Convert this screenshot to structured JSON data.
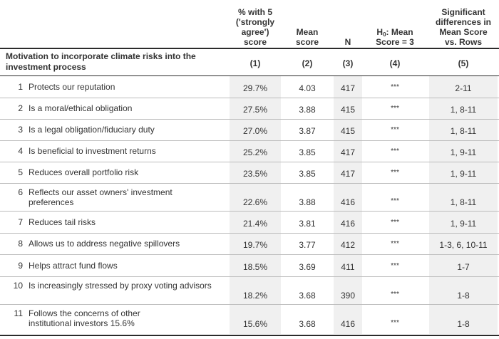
{
  "header": {
    "col1": [
      "% with 5",
      "('strongly",
      "agree')",
      "score"
    ],
    "col2": [
      "Mean",
      "score"
    ],
    "col3": [
      "N"
    ],
    "col4_line1_pre": "H",
    "col4_line1_sub": "0",
    "col4_line1_post": ": Mean",
    "col4_line2": "Score = 3",
    "col5": [
      "Significant",
      "differences in",
      "Mean Score",
      "vs. Rows"
    ]
  },
  "subheader": {
    "title": "Motivation to incorporate climate risks into the investment process",
    "numbers": [
      "(1)",
      "(2)",
      "(3)",
      "(4)",
      "(5)"
    ]
  },
  "rows": [
    {
      "num": "1",
      "label": "Protects our reputation",
      "pct": "29.7%",
      "mean": "4.03",
      "n": "417",
      "h0": "***",
      "sig": "2-11"
    },
    {
      "num": "2",
      "label": "Is a moral/ethical obligation",
      "pct": "27.5%",
      "mean": "3.88",
      "n": "415",
      "h0": "***",
      "sig": "1, 8-11"
    },
    {
      "num": "3",
      "label": "Is a legal obligation/fiduciary duty",
      "pct": "27.0%",
      "mean": "3.87",
      "n": "415",
      "h0": "***",
      "sig": "1, 8-11"
    },
    {
      "num": "4",
      "label": "Is beneficial to investment returns",
      "pct": "25.2%",
      "mean": "3.85",
      "n": "417",
      "h0": "***",
      "sig": "1, 9-11"
    },
    {
      "num": "5",
      "label": "Reduces overall portfolio risk",
      "pct": "23.5%",
      "mean": "3.85",
      "n": "417",
      "h0": "***",
      "sig": "1, 9-11"
    },
    {
      "num": "6",
      "label": "Reflects our asset owners' investment preferences",
      "pct": "22.6%",
      "mean": "3.88",
      "n": "416",
      "h0": "***",
      "sig": "1, 8-11"
    },
    {
      "num": "7",
      "label": "Reduces tail risks",
      "pct": "21.4%",
      "mean": "3.81",
      "n": "416",
      "h0": "***",
      "sig": "1, 9-11"
    },
    {
      "num": "8",
      "label": "Allows us to address negative spillovers",
      "pct": "19.7%",
      "mean": "3.77",
      "n": "412",
      "h0": "***",
      "sig": "1-3, 6, 10-11"
    },
    {
      "num": "9",
      "label": "Helps attract fund flows",
      "pct": "18.5%",
      "mean": "3.69",
      "n": "411",
      "h0": "***",
      "sig": "1-7"
    },
    {
      "num": "10",
      "label": "Is increasingly stressed by proxy voting advisors",
      "pct": "18.2%",
      "mean": "3.68",
      "n": "390",
      "h0": "***",
      "sig": "1-8"
    },
    {
      "num": "11",
      "label": "Follows the concerns of other institutional investors 15.6%",
      "pct": "15.6%",
      "mean": "3.68",
      "n": "416",
      "h0": "***",
      "sig": "1-8"
    }
  ]
}
